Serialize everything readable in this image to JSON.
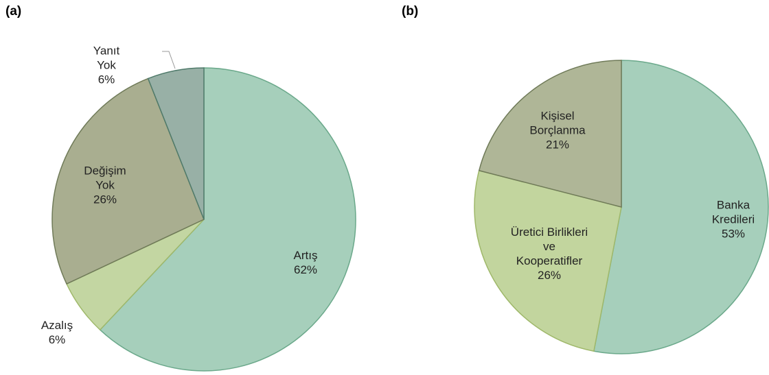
{
  "chart_data": [
    {
      "type": "pie",
      "title": "(a)",
      "categories": [
        "Artış",
        "Azalış",
        "Değişim Yok",
        "Yanıt Yok"
      ],
      "values": [
        62,
        6,
        26,
        6
      ],
      "value_labels": [
        "62%",
        "6%",
        "26%",
        "6%"
      ],
      "colors": [
        "#a6cfbb",
        "#c3d6a2",
        "#a9ae90",
        "#98b0a6"
      ]
    },
    {
      "type": "pie",
      "title": "(b)",
      "categories": [
        "Banka Kredileri",
        "Üretici Birlikleri ve Kooperatifler",
        "Kişisel Borçlanma"
      ],
      "values": [
        53,
        26,
        21
      ],
      "value_labels": [
        "53%",
        "26%",
        "21%"
      ],
      "colors": [
        "#a6cfbb",
        "#c2d59e",
        "#afb697"
      ]
    }
  ]
}
